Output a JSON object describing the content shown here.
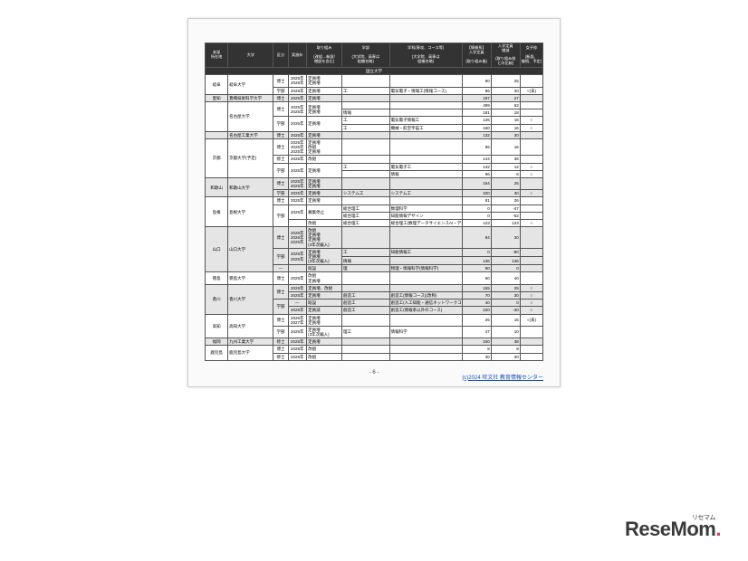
{
  "headers": {
    "c0": "本部\n所在地",
    "c1": "大学",
    "c2": "区分",
    "c3": "実施年",
    "c4": "取り組み\n\n(改組→新設/\n増設を含む)",
    "c5": "学部\n\n(大学院、高専は\n組織名略)",
    "c6": "学科(専攻、コース等)\n\n(大学院、高専は\n組織名略)",
    "c7": "【情報系】\n入学定員\n\n(取り組み後)",
    "c8": "入学定員\n増減\n\n(取り組み前\nとの比較)",
    "c9": "女子枠\n\n(新設、\n継続、予定)"
  },
  "nationalHeader": "国立大学",
  "widths": [
    22,
    44,
    14,
    18,
    34,
    46,
    70,
    28,
    28,
    22
  ],
  "rows": [
    {
      "sep": true,
      "c0": "岐阜",
      "c1": "岐阜大学",
      "c2": "博士",
      "c3": "2025年\n2025年",
      "c4": "定員増\n定員増",
      "c5": "",
      "c6": "",
      "c7": "80",
      "c8": "25",
      "c9": ""
    },
    {
      "c2": "学部",
      "c3": "2025年",
      "c4": "定員増",
      "c5": "工",
      "c6": "電気電子・情報工(情報コース)",
      "c7": "96",
      "c8": "30",
      "c9": "○(未)"
    },
    {
      "sep": true,
      "c0": "愛知",
      "c1": "豊橋技術科学大学",
      "c2": "博士",
      "c3": "2025年",
      "c4": "定員増",
      "c5": "",
      "c6": "",
      "c7": "197",
      "c8": "27",
      "c9": "",
      "gray": true
    },
    {
      "sep": true,
      "c1": "名古屋大学",
      "c2": "博士",
      "c3": "2025年\n2025年",
      "c4": "定員増\n定員増",
      "c5": "",
      "c6": "",
      "c7": "499",
      "c8": "62",
      "c9": ""
    },
    {
      "c5": "情報",
      "c6": "",
      "c7": "181",
      "c8": "18",
      "c9": ""
    },
    {
      "c2": "学部",
      "c3": "2025年",
      "c4": "定員増",
      "c5": "工",
      "c6": "電気電子情報工",
      "c7": "125",
      "c8": "16",
      "c9": "○"
    },
    {
      "c5": "工",
      "c6": "機械・航空宇宙工",
      "c7": "160",
      "c8": "16",
      "c9": "○"
    },
    {
      "sep": true,
      "c1": "名古屋工業大学",
      "c2": "博士",
      "c3": "2025年",
      "c4": "定員増",
      "c5": "",
      "c6": "",
      "c7": "132",
      "c8": "30",
      "c9": "",
      "gray": true
    },
    {
      "sep": true,
      "c0": "京都",
      "c1": "京都大学(予定)",
      "c2": "博士",
      "c3": "2025年\n2025年\n2025年",
      "c4": "定員増\n改組\n定員増",
      "c5": "",
      "c6": "",
      "c7": "96",
      "c8": "16",
      "c9": ""
    },
    {
      "c2": "修士",
      "c3": "2025年",
      "c4": "改組",
      "c5": "",
      "c6": "",
      "c7": "144",
      "c8": "36",
      "c9": ""
    },
    {
      "c2": "学部",
      "c3": "2025年",
      "c4": "定員増",
      "c5": "工",
      "c6": "電気電子工",
      "c7": "142",
      "c8": "12",
      "c9": "○"
    },
    {
      "c5": "",
      "c6": "情報",
      "c7": "96",
      "c8": "6",
      "c9": "○"
    },
    {
      "sep": true,
      "c0": "和歌山",
      "c1": "和歌山大学",
      "c2": "博士",
      "c3": "2025年\n2025年",
      "c4": "定員増\n定員増",
      "c5": "",
      "c6": "",
      "c7": "154",
      "c8": "25",
      "c9": "",
      "gray": true
    },
    {
      "c2": "学部",
      "c3": "2025年",
      "c4": "定員増",
      "c5": "システム工",
      "c6": "システム工",
      "c7": "320",
      "c8": "30",
      "c9": "○",
      "gray": true
    },
    {
      "sep": true,
      "c0": "島根",
      "c1": "島根大学",
      "c2": "博士",
      "c3": "2025年",
      "c4": "定員増",
      "c5": "",
      "c6": "",
      "c7": "81",
      "c8": "26",
      "c9": ""
    },
    {
      "c2": "学部",
      "c3": "2025年",
      "c4": "募集停止",
      "c5": "総合理工",
      "c6": "数理科学",
      "c7": "0",
      "c8": "-47",
      "c9": ""
    },
    {
      "c5": "総合理工",
      "c6": "知能情報デザイン",
      "c7": "0",
      "c8": "-52",
      "c9": ""
    },
    {
      "c4": "改組",
      "c5": "総合理工",
      "c6": "総合理工(数理データサイエンスAI・デジタル分野)",
      "c7": "123",
      "c8": "123",
      "c9": "○"
    },
    {
      "sep": true,
      "c0": "山口",
      "c1": "山口大学",
      "c2": "博士",
      "c3": "2026年\n2026年\n2025年",
      "c4": "改組\n定員増\n定員増\n(3年次編入)",
      "c5": "",
      "c6": "",
      "c7": "94",
      "c8": "30",
      "c9": "",
      "gray": true
    },
    {
      "c2": "学部",
      "c3": "2025年\n2025年",
      "c4": "定員増\n定員増\n(3年次編入)",
      "c5": "工",
      "c6": "知能情報工",
      "c7": "0",
      "c8": "-90",
      "c9": "",
      "gray": true
    },
    {
      "c5": "情報",
      "c6": "",
      "c7": "136",
      "c8": "136",
      "c9": "",
      "gray": true
    },
    {
      "c2": "—",
      "c3": "",
      "c4": "既設",
      "c5": "理",
      "c6": "物理・情報科学(情報科学)",
      "c7": "90",
      "c8": "0",
      "c9": "",
      "gray": true
    },
    {
      "sep": true,
      "c0": "徳島",
      "c1": "徳島大学",
      "c2": "博士",
      "c3": "2025年",
      "c4": "改組\n定員増",
      "c5": "",
      "c6": "",
      "c7": "60",
      "c8": "40",
      "c9": ""
    },
    {
      "sep": true,
      "c0": "香川",
      "c1": "香川大学",
      "c2": "博士",
      "c3": "2025年",
      "c4": "定員増、改組",
      "c5": "",
      "c6": "",
      "c7": "155",
      "c8": "25",
      "c9": "○",
      "gray": true
    },
    {
      "c3": "2025年",
      "c4": "定員増",
      "c5": "創造工",
      "c6": "創造工(情報コース)(改称)",
      "c7": "70",
      "c8": "30",
      "c9": "○",
      "gray": true
    },
    {
      "c2": "学部",
      "c3": "—",
      "c4": "既設",
      "c5": "創造工",
      "c6": "創造工(人工知能・通信ネットワークコース)",
      "c7": "40",
      "c8": "0",
      "c9": "○",
      "gray": true
    },
    {
      "c3": "2025年",
      "c4": "定員減",
      "c5": "創造工",
      "c6": "創造工(情報系以外のコース)",
      "c7": "220",
      "c8": "-30",
      "c9": "○",
      "gray": true
    },
    {
      "sep": true,
      "c0": "高知",
      "c1": "高知大学",
      "c2": "博士",
      "c3": "2025年\n2027年",
      "c4": "定員増\n定員増",
      "c5": "",
      "c6": "",
      "c7": "25",
      "c8": "15",
      "c9": "○(未)"
    },
    {
      "c2": "学部",
      "c3": "2025年",
      "c4": "定員増\n(3年次編入)",
      "c5": "理工",
      "c6": "情報科学",
      "c7": "47",
      "c8": "10",
      "c9": ""
    },
    {
      "sep": true,
      "c0": "福岡",
      "c1": "九州工業大学",
      "c2": "修士",
      "c3": "2025年",
      "c4": "定員増",
      "c5": "",
      "c6": "",
      "c7": "340",
      "c8": "38",
      "c9": "",
      "gray": true
    },
    {
      "sep": true,
      "c0": "鹿児島",
      "c1": "鹿児島大学",
      "c2": "博士",
      "c3": "2025年",
      "c4": "改組",
      "c5": "",
      "c6": "",
      "c7": "8",
      "c8": "8",
      "c9": ""
    },
    {
      "c2": "修士",
      "c3": "2025年",
      "c4": "改組",
      "c5": "",
      "c6": "",
      "c7": "30",
      "c8": "30",
      "c9": ""
    }
  ],
  "pager": "- 6 -",
  "credit": "(c)2024 旺文社 教育情報センター",
  "logo": {
    "text": "ReseMom",
    "ruby": "リセマム"
  }
}
